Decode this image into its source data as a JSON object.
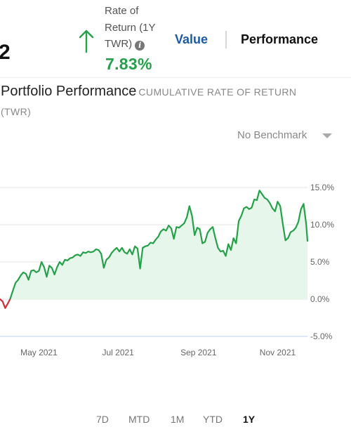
{
  "header": {
    "partial_number": "2",
    "ror_label_lines": [
      "Rate of",
      "Return (1Y",
      "TWR)"
    ],
    "info_icon": "i",
    "ror_value": "7.83%",
    "arrow_icon": "up-arrow-icon",
    "segments": [
      "Value",
      "Performance"
    ],
    "segment_active": "Performance"
  },
  "colors": {
    "positive": "#25a149",
    "negative": "#d0303a",
    "fill": "#e7f6ea",
    "accent": "#1c5aa6"
  },
  "chart_title": "Portfolio Performance",
  "chart_subtitle_line1": "CUMULATIVE RATE OF RETURN",
  "chart_subtitle_line2": "(TWR)",
  "benchmark": {
    "label": "No Benchmark",
    "icon": "caret-down-icon"
  },
  "chart_data": {
    "type": "area",
    "title": "Portfolio Performance",
    "subtitle": "CUMULATIVE RATE OF RETURN (TWR)",
    "y_unit": "%",
    "ylim": [
      -5,
      15
    ],
    "y_ticks": [
      15,
      10,
      5,
      0,
      -5
    ],
    "y_tick_labels": [
      "15.0%",
      "10.0%",
      "5.0%",
      "0.0%",
      "-5.0%"
    ],
    "x_tick_labels": [
      "May 2021",
      "Jul 2021",
      "Sep 2021",
      "Nov 2021"
    ],
    "x_tick_dates": [
      "2021-05-01",
      "2021-07-01",
      "2021-09-01",
      "2021-11-01"
    ],
    "xlim": [
      "2021-04-01",
      "2021-11-24"
    ],
    "grid": true,
    "series": [
      {
        "x": [
          "2021-04-01",
          "2021-04-03",
          "2021-04-05",
          "2021-04-07",
          "2021-04-09",
          "2021-04-11",
          "2021-04-13",
          "2021-04-15",
          "2021-04-17",
          "2021-04-19",
          "2021-04-21",
          "2021-04-23",
          "2021-04-25",
          "2021-04-27",
          "2021-04-29",
          "2021-05-01",
          "2021-05-03",
          "2021-05-05",
          "2021-05-07",
          "2021-05-09",
          "2021-05-11",
          "2021-05-13",
          "2021-05-15",
          "2021-05-17",
          "2021-05-19",
          "2021-05-21",
          "2021-05-23",
          "2021-05-25",
          "2021-05-27",
          "2021-05-29",
          "2021-05-31",
          "2021-06-02",
          "2021-06-04",
          "2021-06-06",
          "2021-06-08",
          "2021-06-10",
          "2021-06-12",
          "2021-06-14",
          "2021-06-16",
          "2021-06-18",
          "2021-06-20",
          "2021-06-22",
          "2021-06-24",
          "2021-06-26",
          "2021-06-28",
          "2021-06-30",
          "2021-07-02",
          "2021-07-04",
          "2021-07-06",
          "2021-07-08",
          "2021-07-10",
          "2021-07-12",
          "2021-07-14",
          "2021-07-16",
          "2021-07-18",
          "2021-07-20",
          "2021-07-22",
          "2021-07-24",
          "2021-07-26",
          "2021-07-28",
          "2021-07-30",
          "2021-08-01",
          "2021-08-03",
          "2021-08-05",
          "2021-08-07",
          "2021-08-09",
          "2021-08-11",
          "2021-08-13",
          "2021-08-15",
          "2021-08-17",
          "2021-08-19",
          "2021-08-21",
          "2021-08-23",
          "2021-08-25",
          "2021-08-27",
          "2021-08-29",
          "2021-08-31",
          "2021-09-02",
          "2021-09-04",
          "2021-09-06",
          "2021-09-08",
          "2021-09-10",
          "2021-09-12",
          "2021-09-14",
          "2021-09-16",
          "2021-09-18",
          "2021-09-20",
          "2021-09-22",
          "2021-09-24",
          "2021-09-26",
          "2021-09-28",
          "2021-09-30",
          "2021-10-02",
          "2021-10-04",
          "2021-10-06",
          "2021-10-08",
          "2021-10-10",
          "2021-10-12",
          "2021-10-14",
          "2021-10-16",
          "2021-10-18",
          "2021-10-20",
          "2021-10-22",
          "2021-10-24",
          "2021-10-26",
          "2021-10-28",
          "2021-10-30",
          "2021-11-01",
          "2021-11-03",
          "2021-11-05",
          "2021-11-07",
          "2021-11-09",
          "2021-11-11",
          "2021-11-13",
          "2021-11-15",
          "2021-11-17",
          "2021-11-19",
          "2021-11-21",
          "2021-11-23",
          "2021-11-24"
        ],
        "y": [
          0.0,
          -0.3,
          -1.2,
          -0.6,
          0.1,
          1.2,
          2.2,
          2.6,
          3.2,
          3.6,
          3.4,
          2.6,
          3.8,
          3.9,
          3.6,
          3.8,
          5.0,
          4.3,
          3.0,
          4.5,
          4.2,
          3.3,
          4.3,
          5.0,
          4.6,
          5.3,
          5.2,
          5.5,
          5.6,
          5.9,
          6.0,
          5.8,
          6.3,
          6.2,
          6.4,
          6.3,
          6.4,
          6.7,
          6.6,
          6.1,
          4.2,
          5.3,
          5.6,
          6.2,
          6.6,
          6.9,
          6.4,
          6.9,
          6.3,
          6.1,
          6.7,
          6.0,
          7.1,
          6.8,
          4.1,
          6.9,
          7.1,
          7.2,
          7.6,
          7.5,
          8.0,
          8.4,
          9.1,
          9.4,
          9.2,
          9.9,
          9.5,
          8.1,
          9.7,
          9.6,
          9.9,
          10.2,
          11.0,
          12.5,
          11.2,
          8.6,
          9.6,
          9.4,
          7.5,
          7.7,
          8.9,
          9.4,
          9.7,
          8.2,
          6.9,
          6.4,
          6.5,
          5.8,
          7.4,
          6.6,
          8.2,
          7.5,
          10.5,
          11.2,
          12.2,
          12.4,
          12.1,
          12.3,
          13.4,
          13.3,
          14.6,
          14.1,
          13.6,
          13.4,
          12.9,
          12.2,
          11.8,
          13.1,
          12.5,
          10.1,
          7.9,
          8.2,
          9.0,
          9.2,
          9.6,
          10.4,
          12.1,
          12.8,
          10.1,
          7.83
        ]
      }
    ]
  },
  "range_tabs": {
    "items": [
      "7D",
      "MTD",
      "1M",
      "YTD",
      "1Y"
    ],
    "active": "1Y"
  }
}
